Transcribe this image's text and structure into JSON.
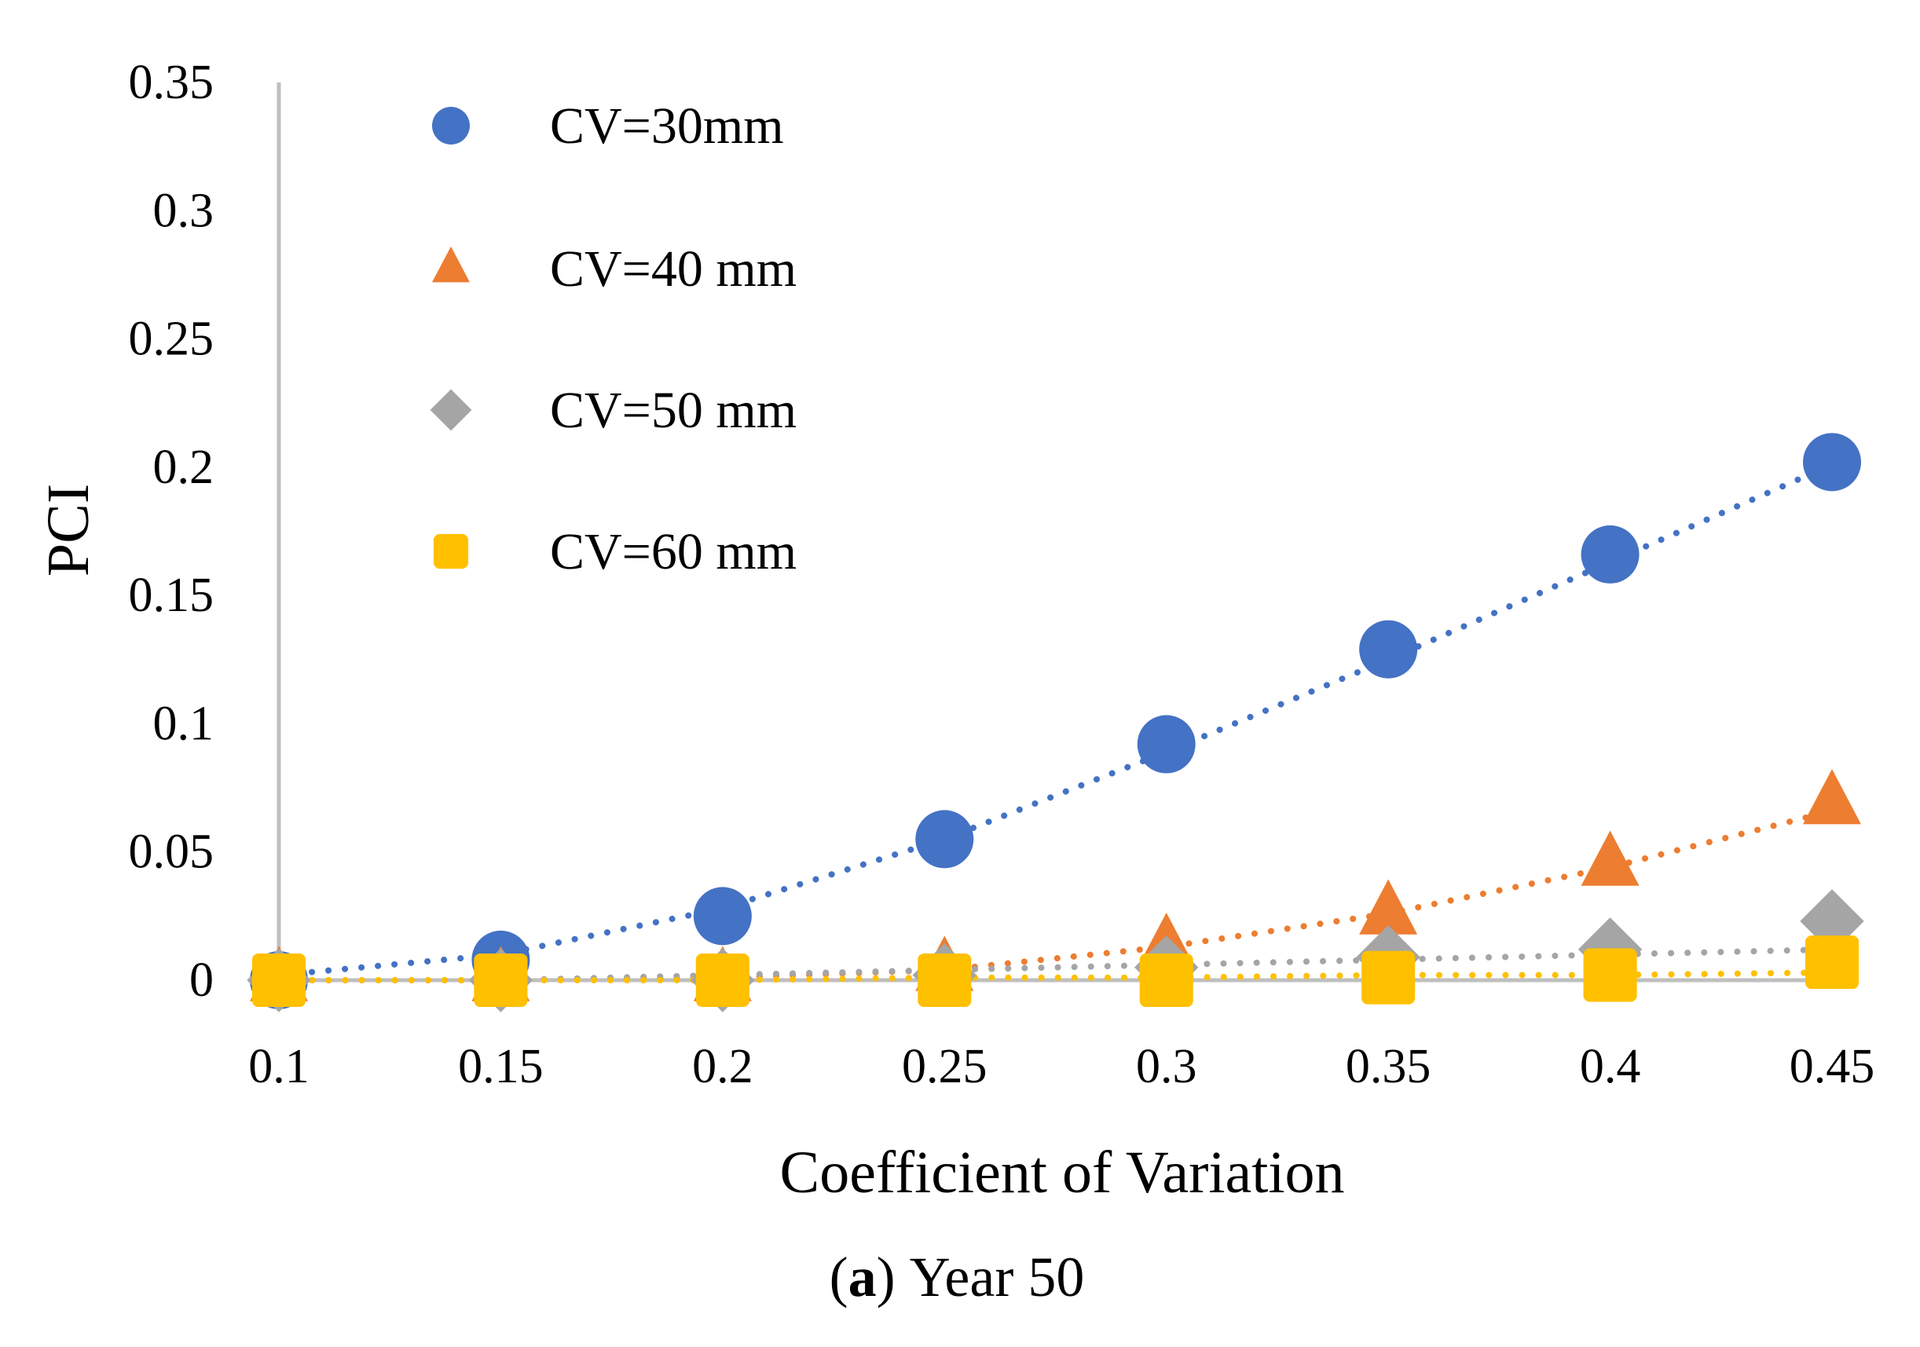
{
  "chart_data": {
    "type": "scatter",
    "title": "",
    "xlabel": "Coefficient of Variation",
    "ylabel": "PCI",
    "x": [
      0.1,
      0.15,
      0.2,
      0.25,
      0.3,
      0.35,
      0.4,
      0.45
    ],
    "x_tick_labels": [
      "0.1",
      "0.15",
      "0.2",
      "0.25",
      "0.3",
      "0.35",
      "0.4",
      "0.45"
    ],
    "y_ticks": [
      0,
      0.05,
      0.1,
      0.15,
      0.2,
      0.25,
      0.3,
      0.35
    ],
    "y_tick_labels": [
      "0",
      "0.05",
      "0.1",
      "0.15",
      "0.2",
      "0.25",
      "0.3",
      "0.35"
    ],
    "xlim": [
      0.1,
      0.45
    ],
    "ylim": [
      0,
      0.35
    ],
    "grid": false,
    "legend_position": "top-left",
    "trendline": "dotted polynomial",
    "series": [
      {
        "name": "CV=30mm",
        "marker": "circle",
        "color": "#4472C4",
        "values": [
          0.0,
          0.008,
          0.025,
          0.055,
          0.092,
          0.129,
          0.166,
          0.202
        ],
        "trend": [
          0.002,
          0.01,
          0.028,
          0.055,
          0.089,
          0.125,
          0.163,
          0.201
        ]
      },
      {
        "name": "CV=40 mm",
        "marker": "triangle",
        "color": "#ED7D31",
        "values": [
          0.0,
          0.0,
          0.0,
          0.004,
          0.013,
          0.026,
          0.045,
          0.069
        ],
        "trend": [
          0.0,
          0.0,
          0.001,
          0.004,
          0.013,
          0.026,
          0.044,
          0.066
        ]
      },
      {
        "name": "CV=50 mm",
        "marker": "diamond",
        "color": "#A5A5A5",
        "values": [
          0.0,
          0.0,
          0.0,
          0.002,
          0.005,
          0.009,
          0.012,
          0.023
        ],
        "trend": [
          0.0,
          0.0,
          0.002,
          0.004,
          0.006,
          0.008,
          0.01,
          0.012
        ]
      },
      {
        "name": "CV=60 mm",
        "marker": "square",
        "color": "#FFC000",
        "values": [
          0.0,
          0.0,
          0.0,
          0.0,
          0.0,
          0.001,
          0.002,
          0.007
        ],
        "trend": [
          0.0,
          0.0,
          0.0,
          0.001,
          0.001,
          0.002,
          0.002,
          0.003
        ]
      }
    ]
  },
  "caption": {
    "letter": "a",
    "open": "(",
    "close": ")",
    "text": "Year 50"
  }
}
